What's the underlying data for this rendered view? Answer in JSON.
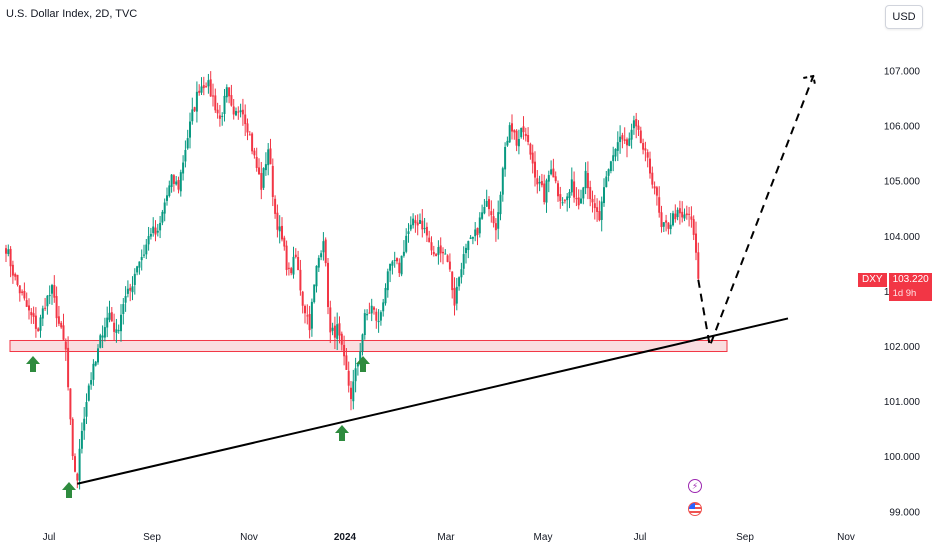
{
  "header": {
    "title": "U.S. Dollar Index, 2D, TVC",
    "currency": "USD"
  },
  "price_tag": {
    "symbol": "DXY",
    "price": "103.220",
    "countdown": "1d 9h"
  },
  "event_icons": [
    "flash-icon",
    "us-flag-icon"
  ],
  "colors": {
    "up": "#089981",
    "down": "#f23645",
    "zone_fill": "#f7c6c9",
    "zone_border": "#f23645",
    "trendline": "#000000",
    "arrow": "#2e8b3e",
    "axis_text": "#131722"
  },
  "chart_data": {
    "type": "candlestick",
    "title": "U.S. Dollar Index, 2D, TVC",
    "y_axis": {
      "position": "right",
      "ticks": [
        "107.000",
        "106.000",
        "105.000",
        "104.000",
        "103.000",
        "102.000",
        "101.000",
        "100.000",
        "99.000"
      ],
      "ylim": [
        98.8,
        108.2
      ]
    },
    "x_axis": {
      "ticks": [
        "Jul",
        "Sep",
        "Nov",
        "2024",
        "Mar",
        "May",
        "Jul",
        "Sep",
        "Nov"
      ],
      "bold_ticks": [
        "2024"
      ]
    },
    "approx_path": [
      [
        0,
        103.8
      ],
      [
        4,
        103.2
      ],
      [
        7,
        102.9
      ],
      [
        10,
        102.6
      ],
      [
        14,
        102.3
      ],
      [
        17,
        102.8
      ],
      [
        20,
        103.0
      ],
      [
        23,
        102.4
      ],
      [
        26,
        101.9
      ],
      [
        29,
        99.9
      ],
      [
        31,
        99.6
      ],
      [
        33,
        100.5
      ],
      [
        36,
        101.3
      ],
      [
        39,
        101.7
      ],
      [
        42,
        102.3
      ],
      [
        45,
        102.6
      ],
      [
        48,
        102.2
      ],
      [
        51,
        102.8
      ],
      [
        54,
        103.0
      ],
      [
        57,
        103.5
      ],
      [
        60,
        103.7
      ],
      [
        63,
        104.1
      ],
      [
        66,
        104.0
      ],
      [
        69,
        104.6
      ],
      [
        72,
        105.0
      ],
      [
        75,
        104.9
      ],
      [
        78,
        105.6
      ],
      [
        81,
        106.2
      ],
      [
        84,
        106.7
      ],
      [
        87,
        106.8
      ],
      [
        90,
        106.5
      ],
      [
        93,
        106.1
      ],
      [
        96,
        106.6
      ],
      [
        99,
        106.1
      ],
      [
        102,
        106.4
      ],
      [
        105,
        106.0
      ],
      [
        108,
        105.4
      ],
      [
        111,
        104.9
      ],
      [
        114,
        105.6
      ],
      [
        117,
        104.4
      ],
      [
        120,
        103.9
      ],
      [
        123,
        103.3
      ],
      [
        126,
        103.6
      ],
      [
        129,
        102.8
      ],
      [
        132,
        102.4
      ],
      [
        135,
        103.4
      ],
      [
        138,
        104.0
      ],
      [
        141,
        102.2
      ],
      [
        144,
        102.3
      ],
      [
        147,
        101.7
      ],
      [
        150,
        101.1
      ],
      [
        153,
        101.7
      ],
      [
        156,
        102.5
      ],
      [
        159,
        102.7
      ],
      [
        162,
        102.4
      ],
      [
        165,
        103.1
      ],
      [
        168,
        103.5
      ],
      [
        171,
        103.4
      ],
      [
        174,
        104.0
      ],
      [
        177,
        104.2
      ],
      [
        180,
        104.3
      ],
      [
        183,
        104.0
      ],
      [
        186,
        103.6
      ],
      [
        189,
        103.8
      ],
      [
        192,
        103.6
      ],
      [
        195,
        102.8
      ],
      [
        198,
        103.5
      ],
      [
        201,
        103.8
      ],
      [
        204,
        104.0
      ],
      [
        207,
        104.4
      ],
      [
        210,
        104.6
      ],
      [
        213,
        104.2
      ],
      [
        216,
        105.2
      ],
      [
        219,
        106.1
      ],
      [
        222,
        105.7
      ],
      [
        225,
        105.9
      ],
      [
        228,
        105.5
      ],
      [
        231,
        105.0
      ],
      [
        234,
        104.7
      ],
      [
        237,
        105.3
      ],
      [
        240,
        104.8
      ],
      [
        243,
        104.6
      ],
      [
        246,
        104.9
      ],
      [
        249,
        104.6
      ],
      [
        252,
        105.2
      ],
      [
        255,
        104.5
      ],
      [
        258,
        104.3
      ],
      [
        261,
        105.0
      ],
      [
        264,
        105.5
      ],
      [
        267,
        105.8
      ],
      [
        270,
        105.6
      ],
      [
        273,
        106.0
      ],
      [
        276,
        105.7
      ],
      [
        279,
        105.3
      ],
      [
        282,
        104.9
      ],
      [
        285,
        104.1
      ],
      [
        288,
        104.2
      ],
      [
        291,
        104.4
      ],
      [
        294,
        104.3
      ],
      [
        297,
        104.4
      ],
      [
        299,
        104.0
      ],
      [
        301,
        103.2
      ]
    ],
    "last_price": 103.22,
    "support_zone": [
      101.9,
      102.1
    ],
    "support_arrows": [
      {
        "x_label": "Jul",
        "price": 101.9
      },
      {
        "x_label": "2024",
        "price": 100.7
      },
      {
        "x_label": "2024",
        "price": 101.9
      },
      {
        "x_label": "Jul",
        "price": 99.5
      }
    ],
    "trendline": [
      [
        31,
        99.5
      ],
      [
        340,
        102.5
      ]
    ],
    "projection": [
      [
        301,
        103.2
      ],
      [
        306,
        102.0
      ],
      [
        351,
        106.9
      ]
    ]
  }
}
